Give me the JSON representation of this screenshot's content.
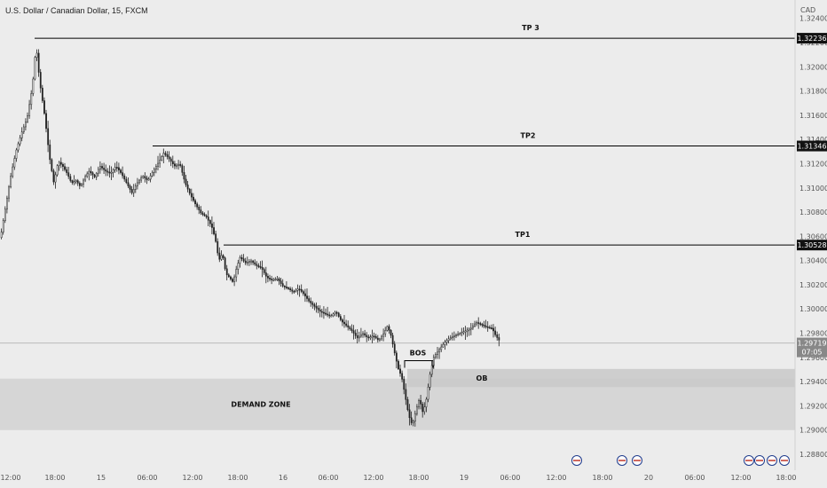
{
  "window": {
    "title": "U.S. Dollar / Canadian Dollar, 15, FXCM"
  },
  "colors": {
    "candle": "#222222",
    "zone": "#d6d6d6",
    "ob": "#c9c9c9",
    "axis_text": "#555555",
    "tag_bg": "#111111",
    "last_bg": "#888888"
  },
  "chart_data": {
    "type": "candlestick",
    "symbol": "U.S. Dollar / Canadian Dollar",
    "interval": "15",
    "source": "FXCM",
    "currency": "CAD",
    "y_ticks": [
      "1.32400",
      "1.32200",
      "1.32000",
      "1.31800",
      "1.31600",
      "1.31400",
      "1.31200",
      "1.31000",
      "1.30800",
      "1.30600",
      "1.30400",
      "1.30200",
      "1.30000",
      "1.29800",
      "1.29600",
      "1.29400",
      "1.29200",
      "1.29000",
      "1.28800"
    ],
    "x_ticks": [
      "12:00",
      "18:00",
      "15",
      "06:00",
      "12:00",
      "18:00",
      "16",
      "06:00",
      "12:00",
      "18:00",
      "19",
      "06:00",
      "12:00",
      "18:00",
      "20",
      "06:00",
      "12:00",
      "18:00"
    ],
    "levels": [
      {
        "label": "TP 3",
        "price": 1.32236,
        "tag": "1.32236"
      },
      {
        "label": "TP2",
        "price": 1.31346,
        "tag": "1.31346"
      },
      {
        "label": "TP1",
        "price": 1.30528,
        "tag": "1.30528"
      }
    ],
    "last_price": {
      "value": 1.29719,
      "tag": "1.29719",
      "countdown": "07:05"
    },
    "zones": [
      {
        "label": "DEMAND ZONE",
        "low": 1.29,
        "high": 1.29425
      },
      {
        "label": "OB",
        "low": 1.29355,
        "high": 1.29505
      }
    ],
    "annotations": [
      {
        "label": "BOS",
        "price": 1.29573
      }
    ],
    "path_points": [
      [
        0,
        1.3059
      ],
      [
        6,
        1.3086
      ],
      [
        12,
        1.3112
      ],
      [
        18,
        1.3132
      ],
      [
        24,
        1.3146
      ],
      [
        30,
        1.3158
      ],
      [
        36,
        1.3184
      ],
      [
        40,
        1.3218
      ],
      [
        44,
        1.3188
      ],
      [
        50,
        1.3158
      ],
      [
        55,
        1.3126
      ],
      [
        60,
        1.3104
      ],
      [
        65,
        1.3122
      ],
      [
        70,
        1.3118
      ],
      [
        75,
        1.3112
      ],
      [
        80,
        1.3104
      ],
      [
        85,
        1.3106
      ],
      [
        90,
        1.3101
      ],
      [
        95,
        1.3109
      ],
      [
        100,
        1.3114
      ],
      [
        106,
        1.3109
      ],
      [
        112,
        1.3118
      ],
      [
        118,
        1.3114
      ],
      [
        124,
        1.3112
      ],
      [
        130,
        1.3118
      ],
      [
        136,
        1.3112
      ],
      [
        142,
        1.3104
      ],
      [
        148,
        1.3096
      ],
      [
        154,
        1.3104
      ],
      [
        160,
        1.311
      ],
      [
        166,
        1.3106
      ],
      [
        172,
        1.3114
      ],
      [
        178,
        1.3121
      ],
      [
        184,
        1.3129
      ],
      [
        190,
        1.3124
      ],
      [
        196,
        1.3118
      ],
      [
        202,
        1.312
      ],
      [
        208,
        1.3104
      ],
      [
        214,
        1.3094
      ],
      [
        220,
        1.3086
      ],
      [
        226,
        1.3079
      ],
      [
        232,
        1.3076
      ],
      [
        238,
        1.3068
      ],
      [
        242,
        1.3058
      ],
      [
        246,
        1.304
      ],
      [
        250,
        1.3046
      ],
      [
        254,
        1.3029
      ],
      [
        258,
        1.3026
      ],
      [
        262,
        1.3022
      ],
      [
        266,
        1.3034
      ],
      [
        270,
        1.3043
      ],
      [
        276,
        1.3038
      ],
      [
        282,
        1.304
      ],
      [
        288,
        1.3036
      ],
      [
        294,
        1.3034
      ],
      [
        300,
        1.3026
      ],
      [
        306,
        1.3024
      ],
      [
        312,
        1.3025
      ],
      [
        318,
        1.3019
      ],
      [
        324,
        1.3017
      ],
      [
        330,
        1.3014
      ],
      [
        336,
        1.3017
      ],
      [
        342,
        1.3012
      ],
      [
        348,
        1.3006
      ],
      [
        354,
        1.3002
      ],
      [
        360,
        1.2998
      ],
      [
        366,
        1.2996
      ],
      [
        372,
        1.2994
      ],
      [
        378,
        1.2998
      ],
      [
        384,
        1.299
      ],
      [
        390,
        1.2986
      ],
      [
        396,
        1.2982
      ],
      [
        402,
        1.2976
      ],
      [
        408,
        1.298
      ],
      [
        414,
        1.2976
      ],
      [
        420,
        1.2978
      ],
      [
        426,
        1.2974
      ],
      [
        432,
        1.298
      ],
      [
        436,
        1.2986
      ],
      [
        440,
        1.2978
      ],
      [
        444,
        1.2964
      ],
      [
        448,
        1.2951
      ],
      [
        452,
        1.2944
      ],
      [
        456,
        1.2928
      ],
      [
        460,
        1.2912
      ],
      [
        464,
        1.2904
      ],
      [
        468,
        1.2916
      ],
      [
        472,
        1.2926
      ],
      [
        476,
        1.2914
      ],
      [
        480,
        1.2926
      ],
      [
        484,
        1.2946
      ],
      [
        488,
        1.296
      ],
      [
        494,
        1.2966
      ],
      [
        500,
        1.2972
      ],
      [
        506,
        1.2976
      ],
      [
        512,
        1.2978
      ],
      [
        518,
        1.298
      ],
      [
        524,
        1.2982
      ],
      [
        530,
        1.2984
      ],
      [
        536,
        1.2989
      ],
      [
        542,
        1.2987
      ],
      [
        548,
        1.2985
      ],
      [
        554,
        1.2984
      ],
      [
        558,
        1.2978
      ],
      [
        562,
        1.2974
      ]
    ]
  }
}
